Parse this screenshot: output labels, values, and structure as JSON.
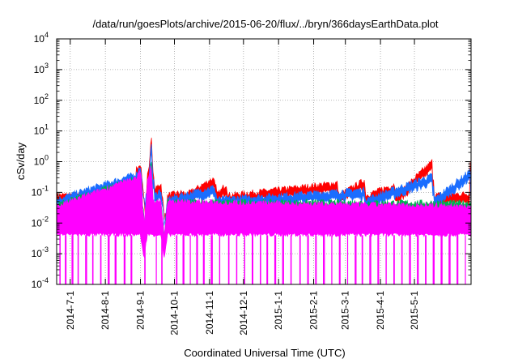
{
  "chart_data": {
    "type": "area",
    "title": "/data/run/goesPlots/archive/2015-06-20/flux/../bryn/366daysEarthData.plot",
    "xlabel": "Coordinated Universal Time (UTC)",
    "ylabel": "cSv/day",
    "y_scale": "log",
    "ylim": [
      0.0001,
      10000
    ],
    "xlim": [
      "2014-06-19",
      "2015-06-20"
    ],
    "grid": true,
    "x_ticks": [
      "2014-7-1",
      "2014-8-1",
      "2014-9-1",
      "2014-10-1",
      "2014-11-1",
      "2014-12-1",
      "2015-1-1",
      "2015-2-1",
      "2015-3-1",
      "2015-4-1",
      "2015-5-1"
    ],
    "y_ticks": [
      {
        "value": 0.0001,
        "base": "10",
        "exp": "-4"
      },
      {
        "value": 0.001,
        "base": "10",
        "exp": "-3"
      },
      {
        "value": 0.01,
        "base": "10",
        "exp": "-2"
      },
      {
        "value": 0.1,
        "base": "10",
        "exp": "-1"
      },
      {
        "value": 1,
        "base": "10",
        "exp": "0"
      },
      {
        "value": 10,
        "base": "10",
        "exp": "1"
      },
      {
        "value": 100,
        "base": "10",
        "exp": "2"
      },
      {
        "value": 1000,
        "base": "10",
        "exp": "3"
      },
      {
        "value": 10000,
        "base": "10",
        "exp": "4"
      }
    ],
    "series": [
      {
        "color": "#ff0000",
        "baseline": 0.08,
        "points": [
          [
            "2014-06-19",
            0.08
          ],
          [
            "2014-08-26",
            0.09
          ],
          [
            "2014-08-28",
            0.6
          ],
          [
            "2014-09-01",
            1.0
          ],
          [
            "2014-09-03",
            0.9
          ],
          [
            "2014-09-05",
            0.12
          ],
          [
            "2014-09-09",
            1.5
          ],
          [
            "2014-09-10",
            5.0
          ],
          [
            "2014-09-11",
            1.2
          ],
          [
            "2014-09-13",
            0.12
          ],
          [
            "2014-09-21",
            0.25
          ],
          [
            "2014-09-23",
            0.08
          ],
          [
            "2014-10-08",
            0.1
          ],
          [
            "2014-10-10",
            0.08
          ],
          [
            "2014-11-05",
            0.3
          ],
          [
            "2014-11-07",
            0.08
          ],
          [
            "2014-11-15",
            0.18
          ],
          [
            "2014-11-17",
            0.08
          ],
          [
            "2015-02-21",
            0.2
          ],
          [
            "2015-02-23",
            0.08
          ],
          [
            "2015-03-17",
            0.25
          ],
          [
            "2015-03-19",
            0.08
          ],
          [
            "2015-04-13",
            0.18
          ],
          [
            "2015-04-15",
            0.08
          ],
          [
            "2015-05-16",
            1.0
          ],
          [
            "2015-05-18",
            0.08
          ],
          [
            "2015-06-18",
            0.09
          ],
          [
            "2015-06-19",
            1.0
          ],
          [
            "2015-06-20",
            0.1
          ]
        ]
      },
      {
        "color": "#1a6dff",
        "baseline": 0.06,
        "points": [
          [
            "2014-06-19",
            0.06
          ],
          [
            "2014-08-28",
            0.4
          ],
          [
            "2014-09-01",
            0.8
          ],
          [
            "2014-09-04",
            0.5
          ],
          [
            "2014-09-06",
            0.09
          ],
          [
            "2014-09-09",
            1.0
          ],
          [
            "2014-09-10",
            3.0
          ],
          [
            "2014-09-11",
            0.8
          ],
          [
            "2014-09-13",
            0.08
          ],
          [
            "2014-09-21",
            0.15
          ],
          [
            "2014-09-23",
            0.06
          ],
          [
            "2014-11-05",
            0.15
          ],
          [
            "2014-11-07",
            0.06
          ],
          [
            "2015-03-17",
            0.12
          ],
          [
            "2015-03-19",
            0.06
          ],
          [
            "2015-05-16",
            0.35
          ],
          [
            "2015-05-18",
            0.06
          ],
          [
            "2015-06-19",
            0.5
          ],
          [
            "2015-06-20",
            0.07
          ]
        ]
      },
      {
        "color": "#00b050",
        "baseline": 0.04,
        "points": [
          [
            "2014-06-19",
            0.04
          ],
          [
            "2014-08-30",
            0.3
          ],
          [
            "2014-09-02",
            0.5
          ],
          [
            "2014-09-05",
            0.05
          ],
          [
            "2014-09-10",
            0.8
          ],
          [
            "2014-09-12",
            0.05
          ],
          [
            "2015-06-20",
            0.045
          ]
        ]
      },
      {
        "color": "#ff00ff",
        "baseline": 0.035,
        "floor": 0.004,
        "points": [
          [
            "2014-06-19",
            0.035
          ],
          [
            "2014-08-28",
            0.3
          ],
          [
            "2014-09-01",
            0.5
          ],
          [
            "2014-09-04",
            0.1
          ],
          [
            "2014-09-10",
            0.6
          ],
          [
            "2014-09-12",
            0.05
          ],
          [
            "2015-06-20",
            0.035
          ]
        ],
        "dips_to_floor": [
          "2014-06-22",
          "2014-06-27",
          "2014-07-03",
          "2014-07-08",
          "2014-07-15",
          "2014-07-21",
          "2014-07-28",
          "2014-08-04",
          "2014-08-10",
          "2014-08-18",
          "2014-08-24",
          "2014-09-05",
          "2014-09-15",
          "2014-09-20",
          "2014-10-03",
          "2014-10-09",
          "2014-10-15",
          "2014-10-21",
          "2014-10-27",
          "2014-11-03",
          "2014-11-10",
          "2014-11-18",
          "2014-11-25",
          "2014-12-02",
          "2014-12-09",
          "2014-12-16",
          "2014-12-22",
          "2014-12-29",
          "2015-01-05",
          "2015-01-12",
          "2015-01-20",
          "2015-01-27",
          "2015-02-03",
          "2015-02-10",
          "2015-02-17",
          "2015-02-24",
          "2015-03-03",
          "2015-03-10",
          "2015-03-16",
          "2015-03-23",
          "2015-03-30",
          "2015-04-06",
          "2015-04-13",
          "2015-04-20",
          "2015-04-27",
          "2015-05-04",
          "2015-05-11",
          "2015-05-18",
          "2015-05-25",
          "2015-06-01",
          "2015-06-08",
          "2015-06-15"
        ]
      }
    ],
    "dips": [
      "2014-09-04",
      "2014-09-22"
    ]
  }
}
